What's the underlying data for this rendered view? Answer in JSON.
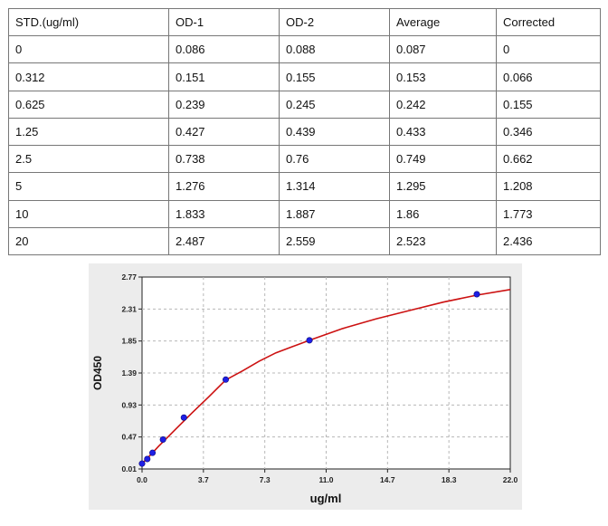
{
  "table": {
    "headers": [
      "STD.(ug/ml)",
      "OD-1",
      "OD-2",
      "Average",
      "Corrected"
    ],
    "rows": [
      [
        "0",
        "0.086",
        "0.088",
        "0.087",
        "0"
      ],
      [
        "0.312",
        "0.151",
        "0.155",
        "0.153",
        "0.066"
      ],
      [
        "0.625",
        "0.239",
        "0.245",
        "0.242",
        "0.155"
      ],
      [
        "1.25",
        "0.427",
        "0.439",
        "0.433",
        "0.346"
      ],
      [
        "2.5",
        "0.738",
        "0.76",
        "0.749",
        "0.662"
      ],
      [
        "5",
        "1.276",
        "1.314",
        "1.295",
        "1.208"
      ],
      [
        "10",
        "1.833",
        "1.887",
        "1.86",
        "1.773"
      ],
      [
        "20",
        "2.487",
        "2.559",
        "2.523",
        "2.436"
      ]
    ]
  },
  "chart_data": {
    "type": "scatter",
    "title": "",
    "xlabel": "ug/ml",
    "ylabel": "OD450",
    "xlim": [
      0,
      22.0
    ],
    "ylim": [
      0.01,
      2.77
    ],
    "x_ticks": [
      "0.0",
      "3.7",
      "7.3",
      "11.0",
      "14.7",
      "18.3",
      "22.0"
    ],
    "y_ticks": [
      "0.01",
      "0.47",
      "0.93",
      "1.39",
      "1.85",
      "2.31",
      "2.77"
    ],
    "grid": true,
    "points": {
      "x": [
        0.0,
        0.312,
        0.625,
        1.25,
        2.5,
        5,
        10,
        20
      ],
      "y": [
        0.087,
        0.153,
        0.242,
        0.433,
        0.749,
        1.295,
        1.86,
        2.523
      ]
    },
    "fit_curve": {
      "x": [
        0,
        0.5,
        1,
        1.5,
        2,
        3,
        4,
        5,
        6,
        7,
        8,
        9,
        10,
        12,
        14,
        16,
        18,
        20,
        22
      ],
      "y": [
        0.087,
        0.21,
        0.34,
        0.46,
        0.58,
        0.82,
        1.05,
        1.29,
        1.42,
        1.56,
        1.68,
        1.77,
        1.86,
        2.03,
        2.17,
        2.29,
        2.41,
        2.51,
        2.59
      ]
    },
    "colors": {
      "point": "#1f1fe6",
      "curve": "#cc1111",
      "grid": "#b8b8b8",
      "panel": "#ececec"
    }
  }
}
